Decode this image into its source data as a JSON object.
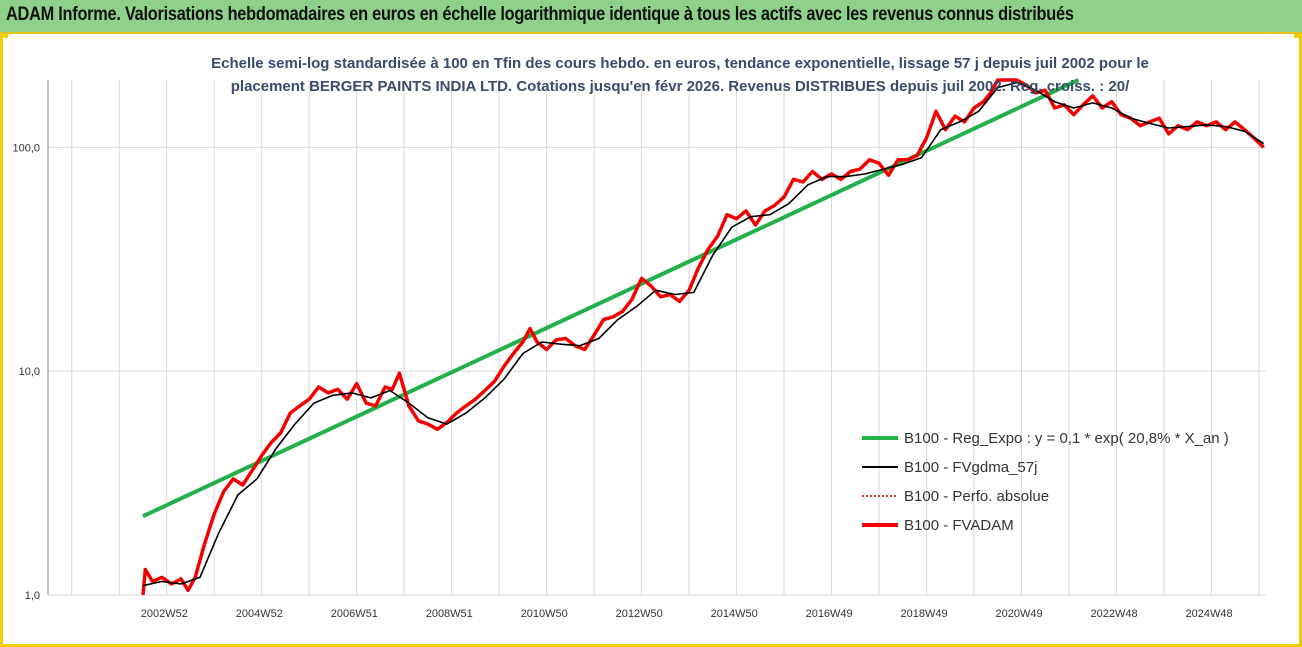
{
  "banner_title": "ADAM Informe. Valorisations hebdomadaires en euros en échelle logarithmique identique à tous les actifs avec les revenus connus distribués",
  "colors": {
    "banner_bg": "#8fd18a",
    "frame": "#f0d000",
    "grid": "#d9d9d9",
    "regression": "#22b04b",
    "smoothed": "#000000",
    "absolute": "#c00000",
    "fvadam": "#ff0000"
  },
  "chart_data": {
    "type": "line",
    "title_line1": "Echelle semi-log standardisée à 100 en Tfin des cours hebdo. en euros, tendance exponentielle, lissage 57 j depuis juil 2002 pour le",
    "title_line2": "placement BERGER PAINTS INDIA LTD. Cotations jusqu'en févr 2026.  Revenus DISTRIBUES depuis juil 2002.  Reg. croiss. : 20/",
    "y_scale": "log",
    "ylim": [
      1,
      200
    ],
    "y_ticks": [
      "1,0",
      "10,0",
      "100,0"
    ],
    "x_ticks": [
      "2002W52",
      "2004W52",
      "2006W51",
      "2008W51",
      "2010W50",
      "2012W50",
      "2014W50",
      "2016W49",
      "2018W49",
      "2020W49",
      "2022W48",
      "2024W48"
    ],
    "xlim": [
      2000.5,
      2026.15
    ],
    "grid": true,
    "legend_position": "bottom-right",
    "legend": [
      "B100 - Reg_Expo : y = 0,1 * exp( 20,8% *  X_an )",
      "B100 - FVgdma_57j",
      "B100 - Perfo. absolue",
      "B100 - FVADAM"
    ],
    "regression": {
      "x": [
        2002.5,
        2022.2
      ],
      "y": [
        2.25,
        200
      ]
    },
    "fvadam": {
      "x": [
        2002.5,
        2002.55,
        2002.7,
        2002.9,
        2003.1,
        2003.3,
        2003.45,
        2003.6,
        2003.8,
        2004.0,
        2004.2,
        2004.4,
        2004.6,
        2004.8,
        2005.0,
        2005.2,
        2005.4,
        2005.6,
        2005.8,
        2006.0,
        2006.2,
        2006.4,
        2006.6,
        2006.8,
        2007.0,
        2007.2,
        2007.4,
        2007.6,
        2007.75,
        2007.9,
        2008.1,
        2008.3,
        2008.5,
        2008.7,
        2008.9,
        2009.1,
        2009.3,
        2009.5,
        2009.7,
        2009.9,
        2010.1,
        2010.3,
        2010.5,
        2010.65,
        2010.8,
        2011.0,
        2011.2,
        2011.4,
        2011.6,
        2011.8,
        2012.0,
        2012.2,
        2012.4,
        2012.6,
        2012.8,
        2013.0,
        2013.2,
        2013.4,
        2013.6,
        2013.8,
        2014.0,
        2014.2,
        2014.4,
        2014.6,
        2014.8,
        2015.0,
        2015.2,
        2015.4,
        2015.6,
        2015.8,
        2016.0,
        2016.2,
        2016.4,
        2016.6,
        2016.8,
        2017.0,
        2017.2,
        2017.4,
        2017.6,
        2017.8,
        2018.0,
        2018.2,
        2018.4,
        2018.6,
        2018.8,
        2019.0,
        2019.2,
        2019.4,
        2019.6,
        2019.8,
        2020.0,
        2020.2,
        2020.35,
        2020.5,
        2020.7,
        2020.9,
        2021.1,
        2021.3,
        2021.5,
        2021.7,
        2021.9,
        2022.1,
        2022.3,
        2022.5,
        2022.7,
        2022.9,
        2023.1,
        2023.3,
        2023.5,
        2023.7,
        2023.9,
        2024.1,
        2024.3,
        2024.5,
        2024.7,
        2024.9,
        2025.1,
        2025.3,
        2025.5,
        2025.7,
        2025.9,
        2026.1
      ],
      "y": [
        1.0,
        1.3,
        1.15,
        1.2,
        1.12,
        1.18,
        1.05,
        1.2,
        1.7,
        2.3,
        2.9,
        3.3,
        3.1,
        3.6,
        4.2,
        4.8,
        5.3,
        6.5,
        7.0,
        7.5,
        8.5,
        8.0,
        8.3,
        7.5,
        8.8,
        7.2,
        7.0,
        8.5,
        8.3,
        9.8,
        7.0,
        6.0,
        5.8,
        5.5,
        5.9,
        6.5,
        7.0,
        7.5,
        8.2,
        9.0,
        10.5,
        12.0,
        13.5,
        15.5,
        13.5,
        12.5,
        13.8,
        14.0,
        13.0,
        12.5,
        14.5,
        17.0,
        17.5,
        18.5,
        21.0,
        26.0,
        24.0,
        21.5,
        22.0,
        20.5,
        23.0,
        29.0,
        35.0,
        40.0,
        50.0,
        48.0,
        52.0,
        45.0,
        52.0,
        55.0,
        60.0,
        72.0,
        70.0,
        78.0,
        72.0,
        76.0,
        72.0,
        78.0,
        80.0,
        88.0,
        85.0,
        75.0,
        88.0,
        88.0,
        92.0,
        110.0,
        145.0,
        120.0,
        138.0,
        130.0,
        150.0,
        160.0,
        175.0,
        200.0,
        200.0,
        200.0,
        190.0,
        175.0,
        180.0,
        150.0,
        155.0,
        140.0,
        155.0,
        170.0,
        150.0,
        160.0,
        140.0,
        135.0,
        125.0,
        130.0,
        135.0,
        115.0,
        125.0,
        120.0,
        130.0,
        125.0,
        130.0,
        120.0,
        130.0,
        120.0,
        110.0,
        100.0
      ]
    },
    "fvgdma_57j": {
      "x": [
        2002.5,
        2002.9,
        2003.3,
        2003.7,
        2004.1,
        2004.5,
        2004.9,
        2005.3,
        2005.7,
        2006.1,
        2006.5,
        2006.9,
        2007.3,
        2007.7,
        2008.1,
        2008.5,
        2008.9,
        2009.3,
        2009.7,
        2010.1,
        2010.5,
        2010.9,
        2011.3,
        2011.7,
        2012.1,
        2012.5,
        2012.9,
        2013.3,
        2013.7,
        2014.1,
        2014.5,
        2014.9,
        2015.3,
        2015.7,
        2016.1,
        2016.5,
        2016.9,
        2017.3,
        2017.7,
        2018.1,
        2018.5,
        2018.9,
        2019.3,
        2019.7,
        2020.1,
        2020.5,
        2020.9,
        2021.3,
        2021.7,
        2022.1,
        2022.5,
        2022.9,
        2023.3,
        2023.7,
        2024.1,
        2024.5,
        2024.9,
        2025.3,
        2025.7,
        2026.1
      ],
      "y": [
        1.1,
        1.15,
        1.12,
        1.2,
        1.9,
        2.8,
        3.3,
        4.5,
        5.8,
        7.2,
        7.8,
        8.0,
        7.6,
        8.2,
        7.2,
        6.2,
        5.8,
        6.5,
        7.6,
        9.2,
        12.0,
        13.5,
        13.2,
        13.0,
        14.0,
        17.0,
        19.5,
        23.0,
        22.0,
        22.5,
        33.0,
        44.0,
        49.0,
        50.0,
        56.0,
        68.0,
        74.0,
        74.0,
        76.0,
        80.0,
        84.0,
        90.0,
        120.0,
        130.0,
        145.0,
        185.0,
        195.0,
        180.0,
        160.0,
        150.0,
        158.0,
        150.0,
        135.0,
        128.0,
        122.0,
        124.0,
        126.0,
        124.0,
        118.0,
        104.0
      ]
    }
  }
}
